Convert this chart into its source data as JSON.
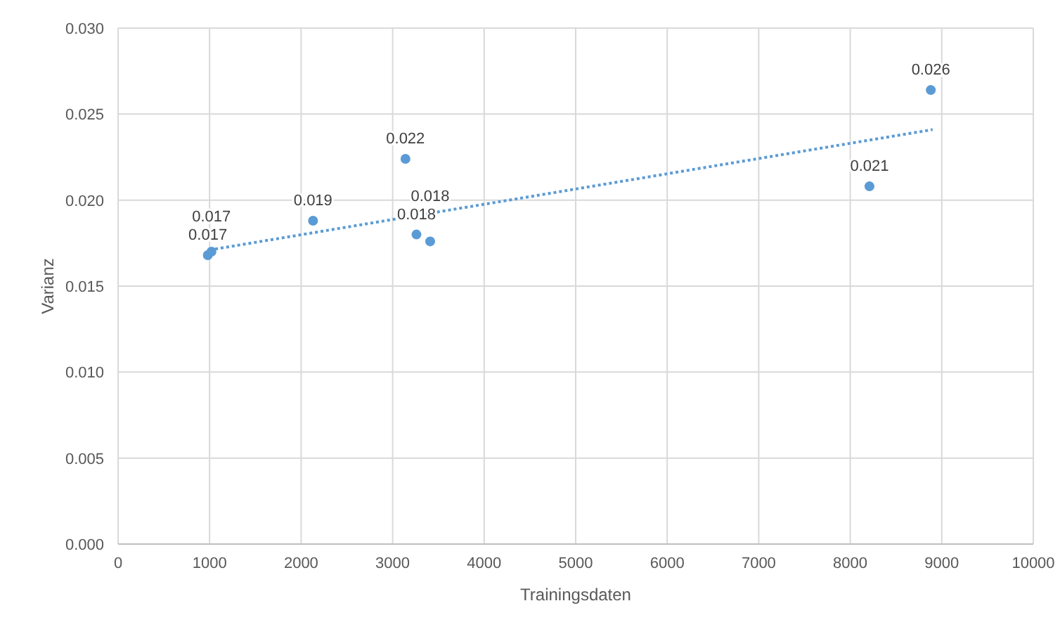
{
  "chart_data": {
    "type": "scatter",
    "xlabel": "Trainingsdaten",
    "ylabel": "Varianz",
    "xlim": [
      0,
      10000
    ],
    "xticks": [
      0,
      1000,
      2000,
      3000,
      4000,
      5000,
      6000,
      7000,
      8000,
      9000,
      10000
    ],
    "ylim": [
      0,
      0.03
    ],
    "yticks": [
      {
        "value": 0,
        "label": "0.000"
      },
      {
        "value": 0.005,
        "label": "0.005"
      },
      {
        "value": 0.01,
        "label": "0.010"
      },
      {
        "value": 0.015,
        "label": "0.015"
      },
      {
        "value": 0.02,
        "label": "0.020"
      },
      {
        "value": 0.025,
        "label": "0.025"
      },
      {
        "value": 0.03,
        "label": "0.030"
      }
    ],
    "grid": true,
    "marker": "circle",
    "series": [
      {
        "color": "#5b9bd5",
        "x": [
          980,
          1020,
          2130,
          3140,
          3260,
          3410,
          8210,
          8880
        ],
        "values": [
          0.0168,
          0.017,
          0.0188,
          0.0224,
          0.018,
          0.0176,
          0.0208,
          0.0264
        ],
        "value_labels": [
          "0.017",
          "0.017",
          "0.019",
          "0.022",
          "0.018",
          "0.018",
          "0.021",
          "0.026"
        ]
      },
      {
        "type": "line",
        "color": "#5b9bd5",
        "line_style": "dotted",
        "marker": "none",
        "x": [
          1000,
          8900
        ],
        "values": [
          0.0171,
          0.0241
        ]
      }
    ]
  }
}
